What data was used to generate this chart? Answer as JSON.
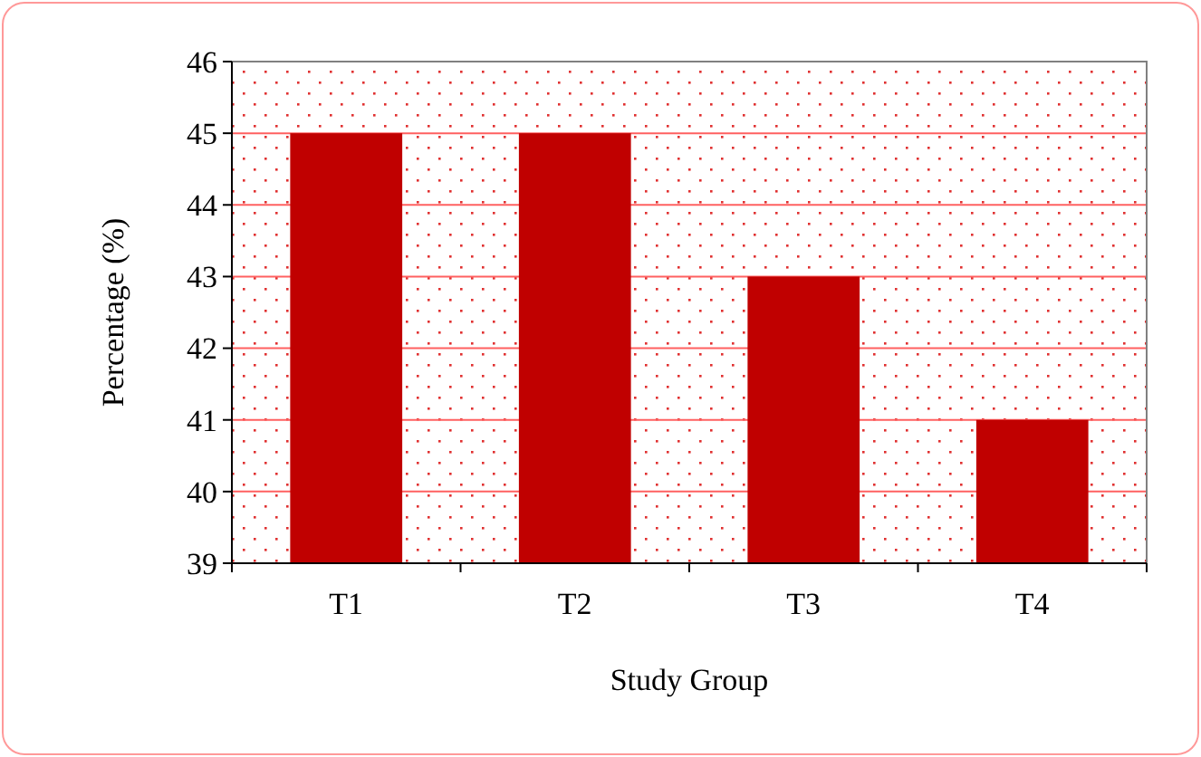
{
  "chart_data": {
    "type": "bar",
    "xlabel": "Study Group",
    "ylabel": "Percentage (%)",
    "categories": [
      "T1",
      "T2",
      "T3",
      "T4"
    ],
    "values": [
      45,
      45,
      43,
      41
    ],
    "color": "#c00000",
    "ylim": [
      39,
      46
    ],
    "yticks": [
      39,
      40,
      41,
      42,
      43,
      44,
      45,
      46
    ],
    "grid": "y"
  }
}
